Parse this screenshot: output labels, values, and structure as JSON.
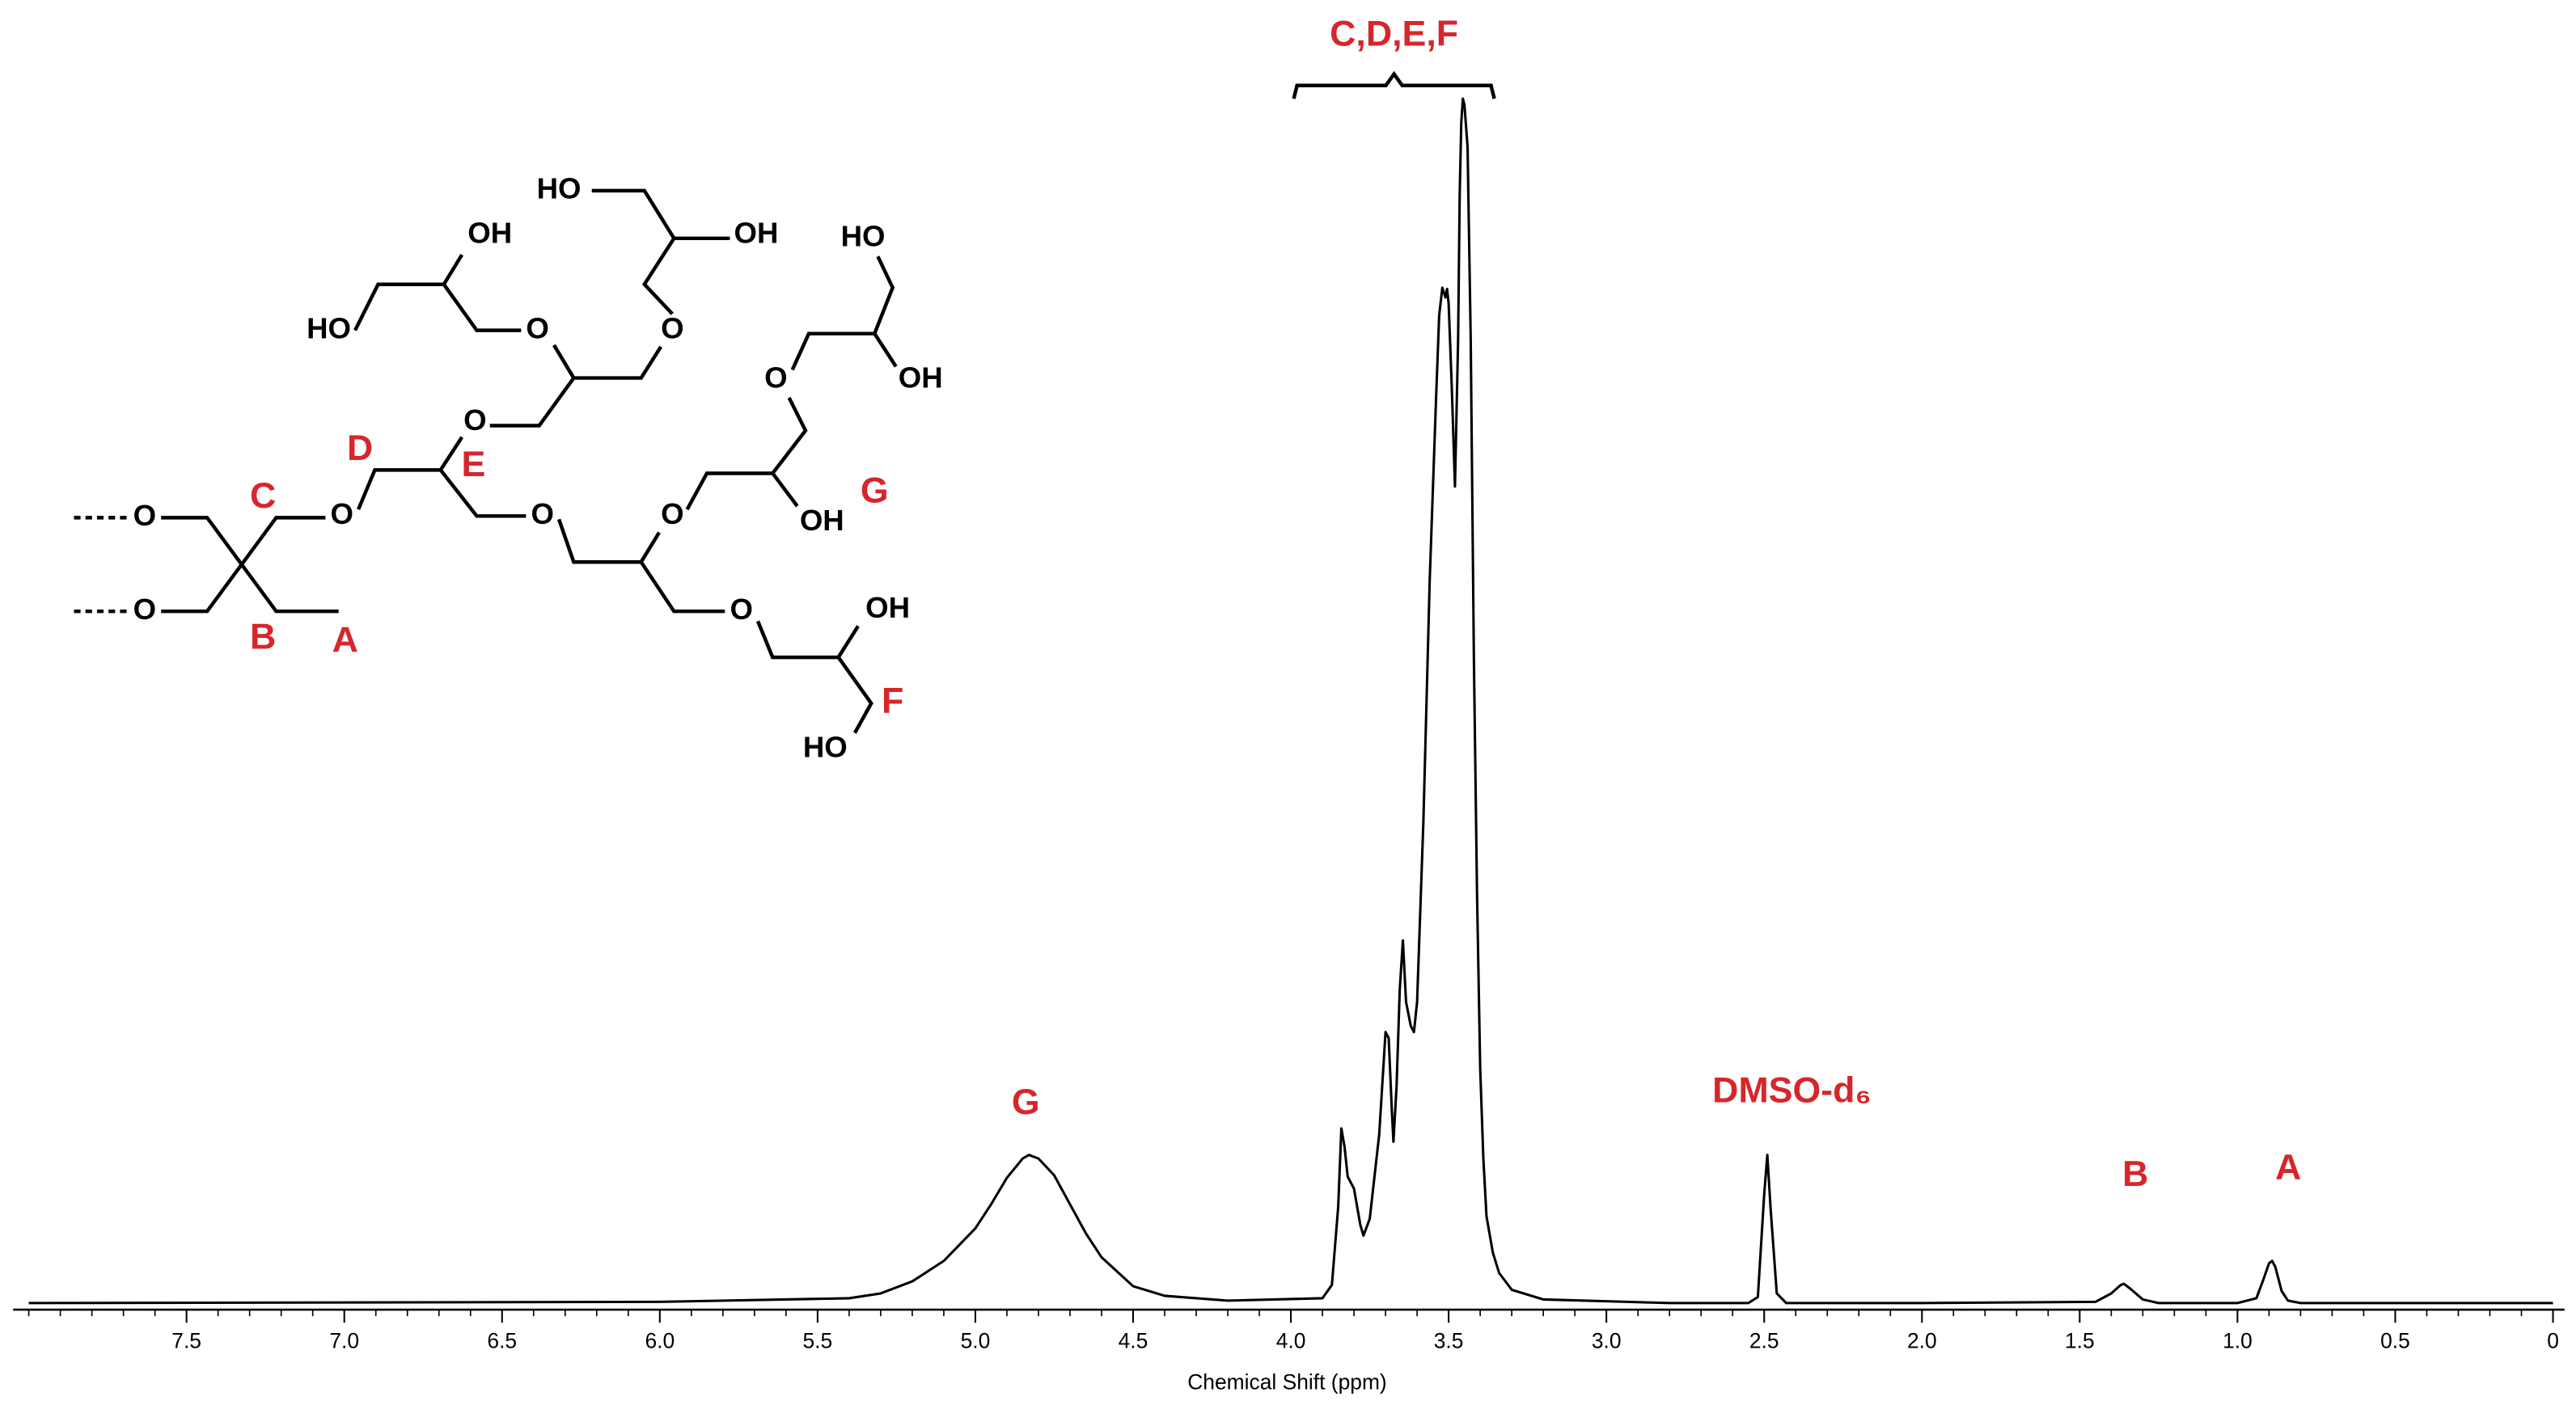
{
  "chart_data": {
    "type": "line",
    "xlabel": "Chemical Shift (ppm)",
    "xlim": [
      8.0,
      0.0
    ],
    "ylim": [
      0,
      100
    ],
    "xticks": [
      7.5,
      {
        "value": 7,
        "label": "7.0"
      },
      6.5,
      {
        "value": 6,
        "label": "6.0"
      },
      5.5,
      {
        "value": 5,
        "label": "5.0"
      },
      4.5,
      {
        "value": 4,
        "label": "4.0"
      },
      3.5,
      {
        "value": 3,
        "label": "3.0"
      },
      2.5,
      {
        "value": 2,
        "label": "2.0"
      },
      1.5,
      {
        "value": 1,
        "label": "1.0"
      },
      0.5,
      0
    ],
    "xticks_minor": [
      8.0,
      7.9,
      7.8,
      7.7,
      7.6,
      7.5,
      7.4,
      7.3,
      7.2,
      7.1,
      7.0,
      6.9,
      6.8,
      6.7,
      6.6,
      6.5,
      6.4,
      6.3,
      6.2,
      6.1,
      6.0,
      5.9,
      5.8,
      5.7,
      5.6,
      5.5,
      5.4,
      5.3,
      5.2,
      5.1,
      5.0,
      4.9,
      4.8,
      4.7,
      4.6,
      4.5,
      4.4,
      4.3,
      4.2,
      4.1,
      4.0,
      3.9,
      3.8,
      3.7,
      3.6,
      3.5,
      3.4,
      3.3,
      3.2,
      3.1,
      3.0,
      2.9,
      2.8,
      2.7,
      2.6,
      2.5,
      2.4,
      2.3,
      2.2,
      2.1,
      2.0,
      1.9,
      1.8,
      1.7,
      1.6,
      1.5,
      1.4,
      1.3,
      1.2,
      1.1,
      1.0,
      0.9,
      0.8,
      0.7,
      0.6,
      0.5,
      0.4,
      0.3,
      0.2,
      0.1,
      0.0
    ],
    "x": [
      8.0,
      6.0,
      5.4,
      5.3,
      5.2,
      5.1,
      5.0,
      4.95,
      4.9,
      4.85,
      4.83,
      4.8,
      4.75,
      4.7,
      4.65,
      4.6,
      4.5,
      4.4,
      4.2,
      3.9,
      3.87,
      3.85,
      3.84,
      3.83,
      3.82,
      3.8,
      3.78,
      3.77,
      3.75,
      3.72,
      3.7,
      3.69,
      3.68,
      3.675,
      3.665,
      3.655,
      3.645,
      3.635,
      3.62,
      3.61,
      3.6,
      3.58,
      3.56,
      3.54,
      3.53,
      3.52,
      3.51,
      3.505,
      3.5,
      3.49,
      3.48,
      3.47,
      3.465,
      3.46,
      3.455,
      3.45,
      3.44,
      3.43,
      3.42,
      3.41,
      3.4,
      3.39,
      3.38,
      3.36,
      3.34,
      3.3,
      3.2,
      2.8,
      2.55,
      2.52,
      2.5,
      2.49,
      2.48,
      2.46,
      2.43,
      2.0,
      1.45,
      1.4,
      1.37,
      1.36,
      1.34,
      1.3,
      1.25,
      1.0,
      0.94,
      0.92,
      0.9,
      0.89,
      0.88,
      0.86,
      0.84,
      0.8,
      0.0
    ],
    "series": [
      {
        "color": "#000000",
        "values": [
          0,
          0.1,
          0.4,
          0.8,
          1.8,
          3.5,
          6.2,
          8.2,
          10.4,
          12.0,
          12.3,
          12.0,
          10.6,
          8.2,
          5.8,
          3.8,
          1.4,
          0.6,
          0.2,
          0.4,
          1.5,
          8,
          14.5,
          13,
          10.5,
          9.5,
          6.5,
          5.6,
          7,
          14,
          22.5,
          22,
          16,
          13.4,
          18,
          26,
          30.1,
          25,
          23,
          22.5,
          25,
          40,
          60,
          75,
          82,
          84.3,
          83.5,
          84.2,
          83,
          76,
          67.8,
          80,
          92,
          98,
          100,
          99.5,
          96,
          80,
          53.6,
          34,
          19.5,
          12,
          7.2,
          4.2,
          2.5,
          1.1,
          0.3,
          0,
          0,
          0.5,
          9,
          12.3,
          8,
          0.8,
          0,
          0,
          0.1,
          0.8,
          1.5,
          1.6,
          1.2,
          0.3,
          0,
          0,
          0.4,
          1.8,
          3.3,
          3.5,
          3,
          1,
          0.2,
          0,
          0
        ]
      }
    ],
    "annotations": [
      "C,D,E,F",
      "G",
      "DMSO-d₆",
      "B",
      "A"
    ],
    "annotation_color": "#d7262b"
  },
  "structure": {
    "atoms": [
      "HO",
      "OH",
      "OH",
      "HO",
      "O",
      "O",
      "HO",
      "OH",
      "O",
      "O",
      "O",
      "O",
      "O",
      "O",
      "OH",
      "O",
      "O",
      "OH",
      "HO"
    ],
    "labels": [
      "C",
      "D",
      "E",
      "G",
      "B",
      "A",
      "F"
    ]
  }
}
